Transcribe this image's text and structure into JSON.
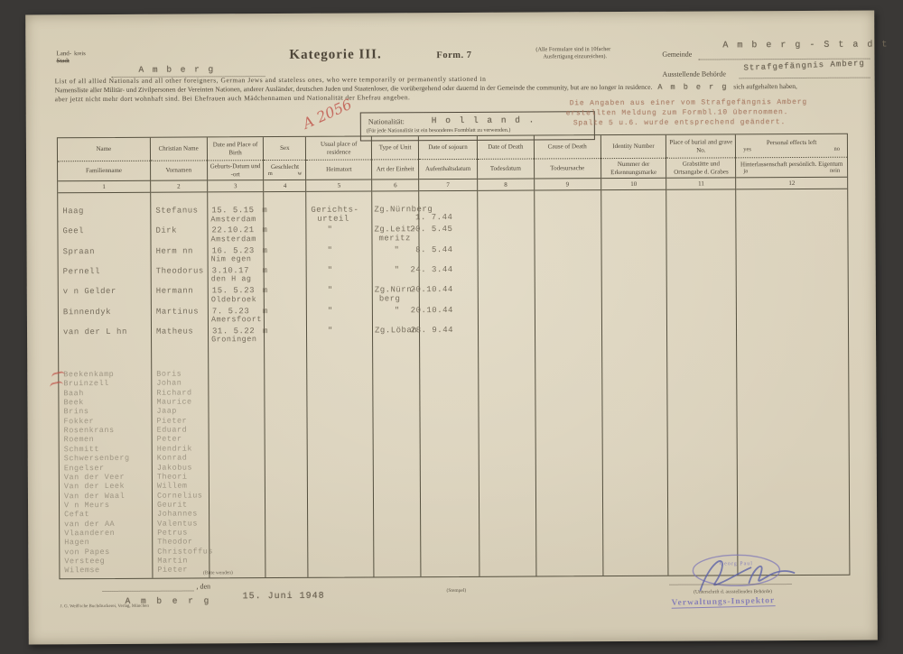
{
  "document": {
    "kreis_line1": "Land-",
    "kreis_suffix": "kreis",
    "kreis_line2": "Stadt",
    "kreis_value": "A m b e r g",
    "title": "Kategorie III.",
    "form_no": "Form. 7",
    "copies_note_line1": "(Alle Formulare sind in 10facher",
    "copies_note_line2": "Ausfertigung einzureichen).",
    "gemeinde_label": "Gemeinde",
    "gemeinde_value": "A m b e r g - S t a d t",
    "behoerde_label": "Ausstellende Behörde",
    "behoerde_value": "Strafgefängnis Amberg",
    "intro_line1": "List of all allied Nationals and all other foreigners, German Jews and stateless ones, who were temporarily or permanently stationed in",
    "intro_line2_de": "Namensliste aller Militär- und Zivilpersonen der Vereinten Nationen, anderer Ausländer, deutschen Juden und Staatenloser, die vorübergehend oder dauernd in der Gemeinde",
    "intro_line2_en": "the community, but are no longer in residence.",
    "intro_line2_value": "A m b e r g",
    "intro_line2_tail": "sich aufgehalten haben,",
    "intro_line3": "aber jetzt nicht mehr dort wohnhaft sind. Bei Ehefrauen auch Mädchennamen und Nationalität der Ehefrau angeben.",
    "registry_mark": "A 2056",
    "nationality_label": "Nationalität:",
    "nationality_value": "H o l l a n d .",
    "nationality_note": "(Für jede Nationalität ist ein besonderes Formblatt zu verwenden.)",
    "typed_note_lines": [
      "Die Angaben aus einer vom Strafgefängnis Amberg",
      "erstellten Meldung zum Formbl.10 übernommen.",
      "Spalte 5 u.6. wurde entsprechend geändert."
    ]
  },
  "table": {
    "columns": [
      {
        "en": "Name",
        "de": "Familienname",
        "num": "1"
      },
      {
        "en": "Christian Name",
        "de": "Vornamen",
        "num": "2"
      },
      {
        "en": "Date and Place of Birth",
        "de": "Geburts-Datum und -ort",
        "num": "3"
      },
      {
        "en": "Sex",
        "de": "Geschlecht",
        "de_sub_l": "m",
        "de_sub_r": "w",
        "num": "4"
      },
      {
        "en": "Usual place of residence",
        "de": "Heimatort",
        "num": "5"
      },
      {
        "en": "Type of Unit",
        "de": "Art der Einheit",
        "num": "6"
      },
      {
        "en": "Date of sojourn",
        "de": "Aufenthaltsdatum",
        "num": "7"
      },
      {
        "en": "Date of Death",
        "de": "Todesdatum",
        "num": "8"
      },
      {
        "en": "Cause of Death",
        "de": "Todesursache",
        "num": "9"
      },
      {
        "en": "Identity Number",
        "de": "Nummer der Erkennungsmarke",
        "num": "10"
      },
      {
        "en": "Place of burial and grave No.",
        "de": "Grabstätte und Ortsangabe d. Grabes",
        "num": "11"
      },
      {
        "en": "Personal effects left",
        "en_sub_l": "yes",
        "en_sub_r": "no",
        "de": "Hinterlassenschaft persönlich. Eigentum",
        "de_sub_l": "ja",
        "de_sub_r": "nein",
        "num": "12"
      }
    ]
  },
  "entries": [
    {
      "name": "Haag",
      "firstname": "Stefanus",
      "birth": "15. 5.15",
      "sex": "m",
      "birthplace": "Amsterdam",
      "residence": "Gerichts-",
      "residence2": "urteil",
      "unit": "Zg.Nürnberg",
      "unit2": "",
      "date": "1. 7.44",
      "date_dy": 9
    },
    {
      "name": "Geel",
      "firstname": "Dirk",
      "birth": "22.10.21",
      "sex": "m",
      "birthplace": "Amsterdam",
      "residence": "\"",
      "residence2": "",
      "unit": "Zg.Leit-",
      "unit2": "meritz",
      "date": "20. 5.45",
      "date_dy": 0
    },
    {
      "name": "Spraan",
      "firstname": "Herm nn",
      "birth": "16. 5.23",
      "sex": "m",
      "birthplace": "Nim egen",
      "residence": "\"",
      "residence2": "",
      "unit": "\"",
      "unit2": "",
      "date": "8. 5.44",
      "date_dy": 0
    },
    {
      "name": "Pernell",
      "firstname": "Theodorus",
      "birth": "3.10.17",
      "sex": "m",
      "birthplace": "den H ag",
      "residence": "\"",
      "residence2": "",
      "unit": "\"",
      "unit2": "",
      "date": "24. 3.44",
      "date_dy": 0
    },
    {
      "name": "v n Gelder",
      "firstname": "Hermann",
      "birth": "15. 5.23",
      "sex": "m",
      "birthplace": "Oldebroek",
      "residence": "\"",
      "residence2": "",
      "unit": "Zg.Nürn-",
      "unit2": "berg",
      "date": "20.10.44",
      "date_dy": 0
    },
    {
      "name": "Binnendyk",
      "firstname": "Martinus",
      "birth": "7. 5.23",
      "sex": "m",
      "birthplace": "Amersfoort",
      "residence": "\"",
      "residence2": "",
      "unit": "\"",
      "unit2": "",
      "date": "20.10.44",
      "date_dy": 0
    },
    {
      "name": "van der L hn",
      "firstname": "Matheus",
      "birth": "31. 5.22",
      "sex": "m",
      "birthplace": "Groningen",
      "residence": "\"",
      "residence2": "",
      "unit": "Zg.Löban",
      "unit2": "",
      "date": "28. 9.44",
      "date_dy": 0
    }
  ],
  "name_list": [
    {
      "name": "Beekenkamp",
      "firstname": "Boris"
    },
    {
      "name": "Bruinzell",
      "firstname": "Johan"
    },
    {
      "name": "Baah",
      "firstname": "Richard"
    },
    {
      "name": "Beek",
      "firstname": "Maurice"
    },
    {
      "name": "Brins",
      "firstname": "Jaap"
    },
    {
      "name": "Fokker",
      "firstname": "Pieter"
    },
    {
      "name": "Rosenkrans",
      "firstname": "Eduard"
    },
    {
      "name": "Roemen",
      "firstname": "Peter"
    },
    {
      "name": "Schmitt",
      "firstname": "Hendrik"
    },
    {
      "name": "Schwersenberg",
      "firstname": "Konrad"
    },
    {
      "name": "Engelser",
      "firstname": "Jakobus"
    },
    {
      "name": "Van der Veer",
      "firstname": "Theori"
    },
    {
      "name": "Van der Leek",
      "firstname": "Willem"
    },
    {
      "name": "Van der Waal",
      "firstname": "Cornelius"
    },
    {
      "name": "V n Meurs",
      "firstname": "Geurit"
    },
    {
      "name": "Cefat",
      "firstname": "Johannes"
    },
    {
      "name": "van der AA",
      "firstname": "Valentus"
    },
    {
      "name": "Vlaanderen",
      "firstname": "Petrus"
    },
    {
      "name": "Hagen",
      "firstname": "Theodor"
    },
    {
      "name": "von Papes",
      "firstname": "Christoffus"
    },
    {
      "name": "Versteeg",
      "firstname": "Martin"
    },
    {
      "name": "Wilemse",
      "firstname": "Pieter"
    }
  ],
  "list_footer_note": "(Bitte wenden)",
  "footer": {
    "den_label": ", den",
    "place_value": "A m b e r g",
    "date_value": "15. Juni 1948",
    "printer_imprint": "J. G. Weiß'sche Buchdruckerei, Verlag, München",
    "stamp_center": "(Stempel)",
    "name_stamp": "Georg Paul",
    "signature_caption": "(Unterschrift d. ausstellenden Behörde)",
    "office_stamp": "Verwaltungs-Inspektor"
  },
  "colors": {
    "border": "#3a3836",
    "paper": "#d9d0ba",
    "ink": "#4e4639",
    "line": "#55503f",
    "typewriter": "#6e6555",
    "red": "#c0544a",
    "note_red": "#a5765f",
    "stamp_blue": "#7b74b8",
    "signature_blue": "#5d63a8"
  }
}
